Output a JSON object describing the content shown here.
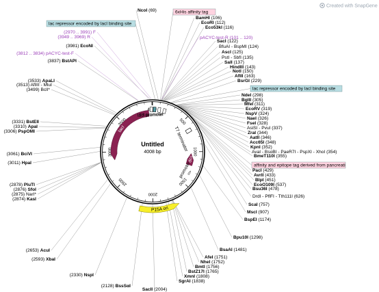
{
  "watermark": "Created with SnapGene",
  "plasmid": {
    "name": "Untitled",
    "length_label": "4008 bp",
    "length": 4008
  },
  "colors": {
    "backbone": "#000000",
    "feature": "#8b2252",
    "ori": "#f7ee2a",
    "primer": "#9b3fb8",
    "tag_box": "#ffd3e0",
    "site_box": "#b8dde2"
  },
  "ticks": [
    {
      "label": "500",
      "bp": 500
    },
    {
      "label": "1000",
      "bp": 1000
    },
    {
      "label": "1500",
      "bp": 1500
    },
    {
      "label": "2000",
      "bp": 2000
    },
    {
      "label": "2500",
      "bp": 2500
    },
    {
      "label": "3000",
      "bp": 3000
    },
    {
      "label": "3500",
      "bp": 3500
    },
    {
      "label": "4000",
      "bp": 4000
    }
  ],
  "features": [
    {
      "name": "lacI",
      "type": "cds",
      "start": 2870,
      "end": 3947,
      "dir": -1,
      "label_color": "white"
    },
    {
      "name": "rop",
      "type": "cds",
      "start": 1030,
      "end": 1220,
      "dir": -1,
      "label_color": "white"
    },
    {
      "name": "P15A ori",
      "type": "ori",
      "start": 1700,
      "end": 2150,
      "dir": -1,
      "label_color": "black"
    },
    {
      "name": "lacI promoter",
      "type": "promoter",
      "start": 3950,
      "end": 4000,
      "dir": 1,
      "label_color": "black"
    },
    {
      "name": "T7 promoter",
      "type": "promoter",
      "start": 3972,
      "end": 4001,
      "dir": 1,
      "label_color": "black"
    },
    {
      "name": "T7 terminator",
      "type": "terminator",
      "start": 665,
      "end": 712,
      "dir": 1,
      "label_color": "black"
    },
    {
      "name": "promoter",
      "type": "promoter",
      "start": 1300,
      "end": 1360,
      "dir": -1,
      "label_color": "black"
    }
  ],
  "site_labels": [
    {
      "text": "(69)",
      "name": "NcoI",
      "bp": 69
    },
    {
      "text": "(106)",
      "name": "BamHI",
      "bp": 106
    },
    {
      "text": "(112)",
      "name": "EcoRI",
      "bp": 112
    },
    {
      "text": "(116)",
      "name": "Eco53kI",
      "bp": 116
    },
    {
      "text": "(122)",
      "name": "SacI",
      "bp": 122
    },
    {
      "text": "BfuAI - BspMI",
      "name": "(124)",
      "bp": 124
    },
    {
      "text": "(125)",
      "name": "AscI",
      "bp": 125
    },
    {
      "text": "PstI - SbfI",
      "name": "(135)",
      "bp": 135
    },
    {
      "text": "(137)",
      "name": "SalI",
      "bp": 137
    },
    {
      "text": "(143)",
      "name": "HindIII",
      "bp": 143
    },
    {
      "text": "(150)",
      "name": "NotI",
      "bp": 150
    },
    {
      "text": "(163)",
      "name": "AflII",
      "bp": 163
    },
    {
      "text": "(229)",
      "name": "BsrGI",
      "bp": 229
    },
    {
      "text": "(298)",
      "name": "NdeI",
      "bp": 298
    },
    {
      "text": "(305)",
      "name": "BglII",
      "bp": 305
    },
    {
      "text": "(311)",
      "name": "MfeI",
      "bp": 311
    },
    {
      "text": "(319)",
      "name": "EcoRV",
      "bp": 319
    },
    {
      "text": "(324)",
      "name": "NspV",
      "bp": 324
    },
    {
      "text": "(326)",
      "name": "NaeI",
      "bp": 326
    },
    {
      "text": "(328)",
      "name": "FseI",
      "bp": 328
    },
    {
      "text": "AsiSI - PvuI",
      "name": "(337)",
      "bp": 337
    },
    {
      "text": "(344)",
      "name": "ZraI",
      "bp": 344
    },
    {
      "text": "(346)",
      "name": "AatII",
      "bp": 346
    },
    {
      "text": "(348)",
      "name": "Acc65I",
      "bp": 348
    },
    {
      "text": "(352)",
      "name": "KpnI",
      "bp": 352
    },
    {
      "text": "AvaI - BsoBI - PaeR7I - PspXI - XhoI",
      "name": "(354)",
      "bp": 354
    },
    {
      "text": "(355)",
      "name": "BmeT110I",
      "bp": 355
    },
    {
      "text": "(429)",
      "name": "PacI",
      "bp": 429
    },
    {
      "text": "(433)",
      "name": "AvrII",
      "bp": 433
    },
    {
      "text": "(451)",
      "name": "BlpI",
      "bp": 451
    },
    {
      "text": "(537)",
      "name": "EcoO109I",
      "bp": 537
    },
    {
      "text": "(478)",
      "name": "Bsu36I",
      "bp": 478
    },
    {
      "text": "DrdI - PflFI - Tth111I",
      "name": "(626)",
      "bp": 626
    },
    {
      "text": "(757)",
      "name": "ScaI",
      "bp": 757
    },
    {
      "text": "(907)",
      "name": "MscI",
      "bp": 907
    },
    {
      "text": "(1174)",
      "name": "BspEI",
      "bp": 1174
    },
    {
      "text": "(1298)",
      "name": "Bpu10I",
      "bp": 1298
    },
    {
      "text": "(1481)",
      "name": "BsaAI",
      "bp": 1481
    },
    {
      "text": "(1751)",
      "name": "AfeI",
      "bp": 1751
    },
    {
      "text": "(1752)",
      "name": "NheI",
      "bp": 1752
    },
    {
      "text": "(1756)",
      "name": "BmtI",
      "bp": 1756
    },
    {
      "text": "(1765)",
      "name": "BstZ17I",
      "bp": 1765
    },
    {
      "text": "(1808)",
      "name": "XmnI",
      "bp": 1808
    },
    {
      "text": "(1838)",
      "name": "SgrAI",
      "bp": 1838
    },
    {
      "text": "(2004)",
      "name": "SacII",
      "bp": 2004
    },
    {
      "text": "(2128)",
      "name": "BssSαI",
      "bp": 2128
    },
    {
      "text": "(2330)",
      "name": "NspI",
      "bp": 2330
    },
    {
      "text": "(2593)",
      "name": "XbaI",
      "bp": 2593
    },
    {
      "text": "(2653)",
      "name": "AcuI",
      "bp": 2653
    },
    {
      "text": "(2874)",
      "name": "KasI",
      "bp": 2874
    },
    {
      "text": "(2875)",
      "name": "NarI*",
      "bp": 2875
    },
    {
      "text": "(2876)",
      "name": "SfoI",
      "bp": 2876
    },
    {
      "text": "(2878)",
      "name": "PluTI",
      "bp": 2878
    },
    {
      "text": "(3011)",
      "name": "HpaI",
      "bp": 3011
    },
    {
      "text": "(3061)",
      "name": "BciVI",
      "bp": 3061
    },
    {
      "text": "(3306)",
      "name": "PspOMI",
      "bp": 3306
    },
    {
      "text": "(3310)",
      "name": "ApaI",
      "bp": 3310
    },
    {
      "text": "(3331)",
      "name": "BstEII",
      "bp": 3331
    },
    {
      "text": "(3499)",
      "name": "BclI*",
      "bp": 3499
    },
    {
      "text": "(3513)",
      "name": "AflIII - MluI",
      "bp": 3513
    },
    {
      "text": "(3533)",
      "name": "ApaLI",
      "bp": 3533
    },
    {
      "text": "(3837)",
      "name": "BstAPI",
      "bp": 3837
    },
    {
      "text": "(3981)",
      "name": "EcoNI",
      "bp": 3981
    }
  ],
  "primers": [
    {
      "text": "pACYC-test-R (101 .. 120)",
      "bp": 110
    },
    {
      "text": "(2970 .. 3991)  F",
      "bp": 3991
    },
    {
      "text": "(3949 .. 3969)  R",
      "bp": 3960
    },
    {
      "text": "(3812 .. 3834)  pACYC-test-F",
      "bp": 3834
    }
  ],
  "boxes": [
    {
      "text": "lac repressor encoded by lacI binding site",
      "kind": "site"
    },
    {
      "text": "6xHis affinity tag",
      "kind": "tag"
    },
    {
      "text": "lac repressor encoded by lacI binding site",
      "kind": "site"
    },
    {
      "text": "affinity and epitope tag derived from pancreati",
      "kind": "tag"
    }
  ]
}
